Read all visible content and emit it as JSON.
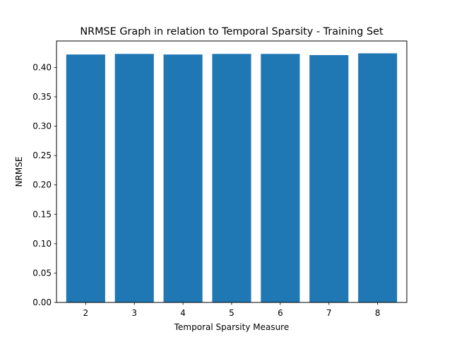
{
  "chart_data": {
    "type": "bar",
    "title": "NRMSE Graph in relation to Temporal Sparsity - Training Set",
    "xlabel": "Temporal Sparsity Measure",
    "ylabel": "NRMSE",
    "categories": [
      "2",
      "3",
      "4",
      "5",
      "6",
      "7",
      "8"
    ],
    "values": [
      0.422,
      0.423,
      0.422,
      0.423,
      0.423,
      0.421,
      0.424
    ],
    "ylim": [
      0.0,
      0.445
    ],
    "yticks": [
      "0.00",
      "0.05",
      "0.10",
      "0.15",
      "0.20",
      "0.25",
      "0.30",
      "0.35",
      "0.40"
    ],
    "grid": false,
    "legend": "none",
    "bar_color": "#1f77b4"
  }
}
